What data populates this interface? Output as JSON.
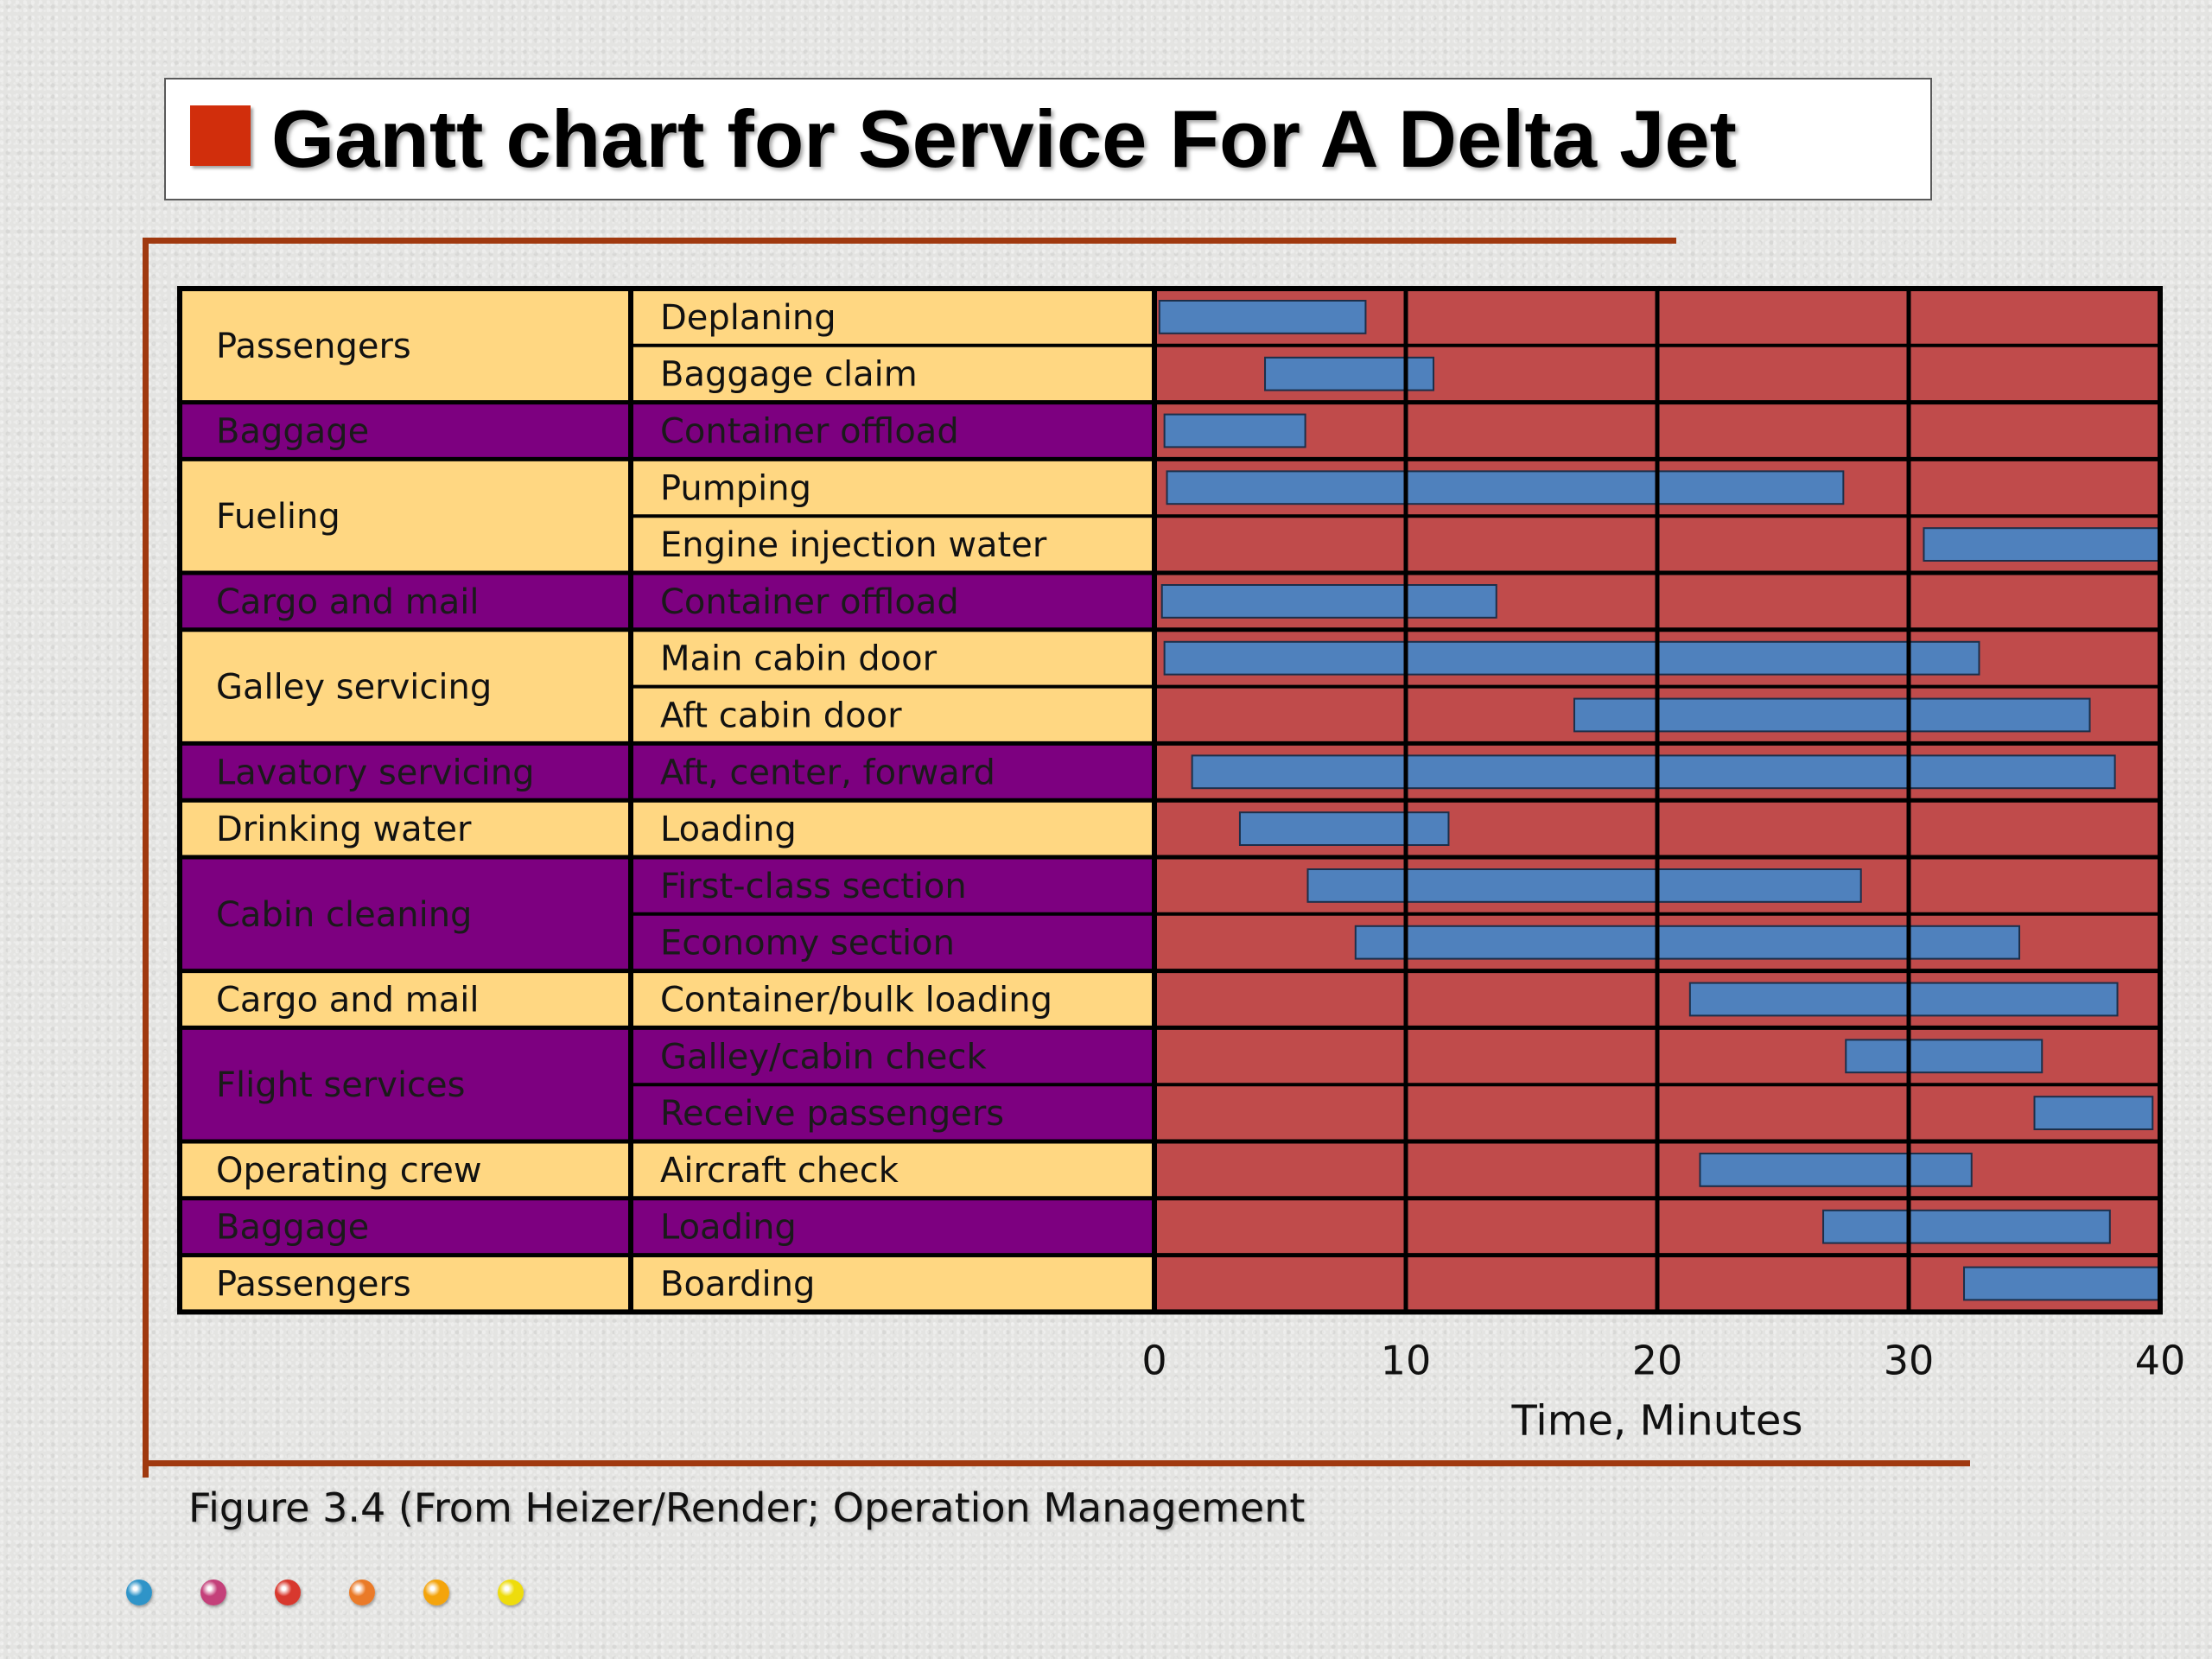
{
  "title": "Gantt chart for Service For A Delta Jet",
  "caption": "Figure 3.4 (From Heizer/Render; Operation Management",
  "colors": {
    "title_bullet": "#d12e0c",
    "frame": "#a0390f",
    "row_light": "#ffd782",
    "row_dark": "#7d0080",
    "plot_bg": "#c04b4b",
    "bar": "#4f81bd",
    "grid": "#000000",
    "dots": [
      "#2f94c8",
      "#c4407a",
      "#d8382e",
      "#ea7a28",
      "#f4a40c",
      "#eedc0c"
    ]
  },
  "chart_data": {
    "type": "bar",
    "title": "Gantt chart for Service For A Delta Jet",
    "xlabel": "Time, Minutes",
    "ylabel": "",
    "xlim": [
      0,
      40
    ],
    "xticks": [
      0,
      10,
      20,
      30,
      40
    ],
    "grid": true,
    "groups": [
      {
        "name": "Passengers",
        "dark": false,
        "tasks": [
          {
            "label": "Deplaning",
            "start": 0.2,
            "end": 8.4
          },
          {
            "label": "Baggage claim",
            "start": 4.4,
            "end": 11.1
          }
        ]
      },
      {
        "name": "Baggage",
        "dark": true,
        "tasks": [
          {
            "label": "Container offload",
            "start": 0.4,
            "end": 6.0
          }
        ]
      },
      {
        "name": "Fueling",
        "dark": false,
        "tasks": [
          {
            "label": "Pumping",
            "start": 0.5,
            "end": 27.4
          },
          {
            "label": "Engine injection water",
            "start": 30.6,
            "end": 40.0
          }
        ]
      },
      {
        "name": "Cargo and mail",
        "dark": true,
        "tasks": [
          {
            "label": "Container offload",
            "start": 0.3,
            "end": 13.6
          }
        ]
      },
      {
        "name": "Galley servicing",
        "dark": false,
        "tasks": [
          {
            "label": "Main cabin door",
            "start": 0.4,
            "end": 32.8
          },
          {
            "label": "Aft cabin door",
            "start": 16.7,
            "end": 37.2
          }
        ]
      },
      {
        "name": "Lavatory servicing",
        "dark": true,
        "tasks": [
          {
            "label": "Aft, center, forward",
            "start": 1.5,
            "end": 38.2
          }
        ]
      },
      {
        "name": "Drinking water",
        "dark": false,
        "tasks": [
          {
            "label": "Loading",
            "start": 3.4,
            "end": 11.7
          }
        ]
      },
      {
        "name": "Cabin cleaning",
        "dark": true,
        "tasks": [
          {
            "label": "First-class section",
            "start": 6.1,
            "end": 28.1
          },
          {
            "label": "Economy section",
            "start": 8.0,
            "end": 34.4
          }
        ]
      },
      {
        "name": "Cargo and mail",
        "dark": false,
        "tasks": [
          {
            "label": "Container/bulk loading",
            "start": 21.3,
            "end": 38.3
          }
        ]
      },
      {
        "name": "Flight services",
        "dark": true,
        "tasks": [
          {
            "label": "Galley/cabin check",
            "start": 27.5,
            "end": 35.3
          },
          {
            "label": "Receive passengers",
            "start": 35.0,
            "end": 39.7
          }
        ]
      },
      {
        "name": "Operating crew",
        "dark": false,
        "tasks": [
          {
            "label": "Aircraft check",
            "start": 21.7,
            "end": 32.5
          }
        ]
      },
      {
        "name": "Baggage",
        "dark": true,
        "tasks": [
          {
            "label": "Loading",
            "start": 26.6,
            "end": 38.0
          }
        ]
      },
      {
        "name": "Passengers",
        "dark": false,
        "tasks": [
          {
            "label": "Boarding",
            "start": 32.2,
            "end": 40.0
          }
        ]
      }
    ]
  }
}
